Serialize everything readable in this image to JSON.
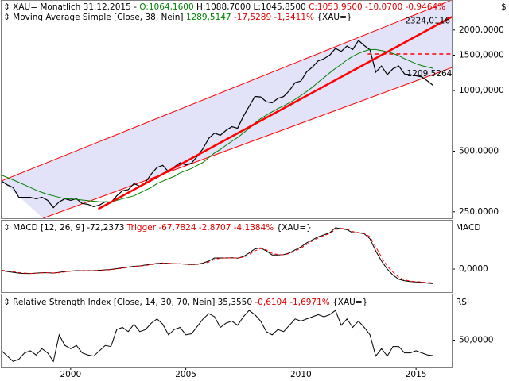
{
  "chart_data": [
    {
      "type": "line",
      "header": [
        "Monatlich  31.12.2015 -",
        "O:1064,1600",
        "H:1088,7000 L:1045,8500",
        "C:1053,9500 -10,0700 -0,9464%"
      ],
      "ma_header": [
        "[Close, 38, Nein]",
        "1289,5147",
        "-17,5289 -1,3411%",
        "{XAU=}"
      ],
      "currency": "$",
      "log_scale": true,
      "xlim": [
        1997,
        2016.55
      ],
      "ylim": [
        232,
        2820
      ],
      "xticks": [
        2000,
        2005,
        2010,
        2015
      ],
      "yticks": [
        {
          "value": 250,
          "label": "250,0000"
        },
        {
          "value": 500,
          "label": "500,0000"
        },
        {
          "value": 1000,
          "label": "1000,0000"
        },
        {
          "value": 1500,
          "label": "1500,0000"
        },
        {
          "value": 2000,
          "label": "2000,0000"
        }
      ],
      "x": [
        1997,
        1997.25,
        1997.5,
        1997.75,
        1998,
        1998.25,
        1998.5,
        1998.75,
        1999,
        1999.25,
        1999.5,
        1999.75,
        2000,
        2000.25,
        2000.5,
        2000.75,
        2001,
        2001.25,
        2001.5,
        2001.75,
        2002,
        2002.25,
        2002.5,
        2002.75,
        2003,
        2003.25,
        2003.5,
        2003.75,
        2004,
        2004.25,
        2004.5,
        2004.75,
        2005,
        2005.25,
        2005.5,
        2005.75,
        2006,
        2006.25,
        2006.5,
        2006.75,
        2007,
        2007.25,
        2007.5,
        2007.75,
        2008,
        2008.25,
        2008.5,
        2008.75,
        2009,
        2009.25,
        2009.5,
        2009.75,
        2010,
        2010.25,
        2010.5,
        2010.75,
        2011,
        2011.25,
        2011.5,
        2011.75,
        2012,
        2012.25,
        2012.5,
        2012.75,
        2013,
        2013.25,
        2013.5,
        2013.75,
        2014,
        2014.25,
        2014.5,
        2014.75,
        2015,
        2015.25,
        2015.5,
        2015.75
      ],
      "series": [
        {
          "name": "XAU=",
          "color": "#000000",
          "width": 1.2,
          "values": [
            355,
            340,
            330,
            295,
            295,
            295,
            290,
            295,
            285,
            262,
            280,
            290,
            285,
            290,
            275,
            272,
            265,
            270,
            280,
            278,
            300,
            318,
            322,
            345,
            335,
            350,
            385,
            415,
            425,
            395,
            418,
            438,
            428,
            436,
            472,
            515,
            580,
            615,
            600,
            635,
            662,
            650,
            745,
            835,
            935,
            930,
            880,
            870,
            915,
            935,
            1000,
            1095,
            1115,
            1240,
            1310,
            1405,
            1440,
            1500,
            1620,
            1565,
            1665,
            1600,
            1775,
            1675,
            1595,
            1235,
            1325,
            1200,
            1285,
            1325,
            1210,
            1200,
            1185,
            1170,
            1115,
            1060
          ]
        },
        {
          "name": "Moving Average Simple",
          "color": "#008000",
          "width": 1,
          "values": [
            380,
            370,
            360,
            350,
            340,
            330,
            320,
            312,
            305,
            300,
            295,
            290,
            290,
            288,
            286,
            284,
            282,
            280,
            280,
            280,
            285,
            290,
            295,
            300,
            310,
            320,
            330,
            345,
            355,
            365,
            375,
            390,
            400,
            410,
            425,
            440,
            465,
            490,
            510,
            535,
            560,
            585,
            615,
            650,
            690,
            725,
            755,
            785,
            815,
            840,
            870,
            905,
            945,
            990,
            1040,
            1100,
            1160,
            1225,
            1290,
            1350,
            1420,
            1480,
            1530,
            1570,
            1600,
            1600,
            1580,
            1560,
            1530,
            1490,
            1440,
            1400,
            1360,
            1330,
            1310,
            1290
          ]
        }
      ],
      "channel": {
        "color": "#ff0000",
        "fill": "#e2e2f8",
        "upper": [
          [
            1997,
            356
          ],
          [
            2016.55,
            2820
          ]
        ],
        "lower": [
          [
            1998.8,
            232
          ],
          [
            2016.55,
            1300
          ]
        ]
      },
      "trend_lines": [
        {
          "color": "#ff0000",
          "points": [
            [
              2001.2,
              258
            ],
            [
              2016.55,
              2324.0116
            ]
          ],
          "label": "2324,0116"
        }
      ],
      "levels": [
        {
          "color": "#ff0000",
          "value": 1520,
          "from": 2012.9
        }
      ],
      "annotations": [
        {
          "x": 2014.6,
          "value": 1209.5264,
          "label": "1209,5264"
        }
      ]
    },
    {
      "type": "line",
      "header": [
        "MACD [12, 26, 9] -72,2373",
        "Trigger -67,7824 -2,8707 -4,1384%",
        "{XAU=}"
      ],
      "axis_label": "MACD",
      "ylim": [
        -114,
        240
      ],
      "yticks": [
        {
          "value": 0,
          "label": "0,0000"
        }
      ],
      "series": [
        {
          "color": "#000000",
          "values": [
            -8,
            -12,
            -16,
            -20,
            -22,
            -22,
            -20,
            -18,
            -18,
            -20,
            -16,
            -12,
            -10,
            -8,
            -8,
            -8,
            -8,
            -6,
            -4,
            -2,
            2,
            6,
            10,
            14,
            16,
            20,
            24,
            28,
            30,
            28,
            26,
            26,
            24,
            22,
            24,
            30,
            40,
            55,
            55,
            55,
            56,
            54,
            62,
            80,
            100,
            105,
            90,
            70,
            70,
            72,
            80,
            95,
            110,
            130,
            145,
            160,
            170,
            180,
            205,
            200,
            195,
            180,
            180,
            175,
            150,
            90,
            40,
            0,
            -30,
            -50,
            -58,
            -62,
            -64,
            -66,
            -70,
            -72.2373
          ]
        },
        {
          "color": "#ff0000",
          "dashed": true,
          "values": [
            -5,
            -9,
            -13,
            -17,
            -20,
            -22,
            -21,
            -19,
            -18,
            -19,
            -18,
            -14,
            -11,
            -9,
            -8,
            -8,
            -8,
            -7,
            -5,
            -3,
            0,
            4,
            8,
            12,
            15,
            18,
            22,
            26,
            29,
            29,
            27,
            26,
            25,
            23,
            23,
            27,
            35,
            48,
            54,
            55,
            55,
            55,
            59,
            72,
            90,
            102,
            95,
            78,
            72,
            71,
            77,
            90,
            104,
            122,
            140,
            154,
            166,
            176,
            196,
            202,
            198,
            186,
            181,
            177,
            160,
            110,
            60,
            15,
            -15,
            -40,
            -53,
            -60,
            -62,
            -64,
            -67,
            -67.7824
          ]
        }
      ]
    },
    {
      "type": "line",
      "header": [
        "Relative Strength Index [Close, 14, 30, 70, Nein] 35,3550",
        "-0,6104 -1,6971%",
        "{XAU=}"
      ],
      "axis_label": "RSI",
      "ylim": [
        25,
        93
      ],
      "yticks": [
        {
          "value": 50,
          "label": "50,0000"
        }
      ],
      "series": [
        {
          "color": "#000000",
          "values": [
            40,
            35,
            30,
            32,
            38,
            40,
            36,
            42,
            38,
            30,
            55,
            45,
            42,
            45,
            38,
            36,
            35,
            40,
            45,
            44,
            60,
            62,
            58,
            65,
            58,
            60,
            66,
            70,
            65,
            55,
            60,
            62,
            55,
            56,
            63,
            70,
            75,
            72,
            62,
            66,
            68,
            64,
            72,
            78,
            74,
            68,
            58,
            55,
            60,
            58,
            64,
            70,
            68,
            70,
            72,
            74,
            72,
            74,
            78,
            64,
            70,
            62,
            68,
            62,
            55,
            35,
            42,
            35,
            44,
            44,
            38,
            38,
            40,
            38,
            36,
            35.355
          ]
        }
      ]
    }
  ]
}
